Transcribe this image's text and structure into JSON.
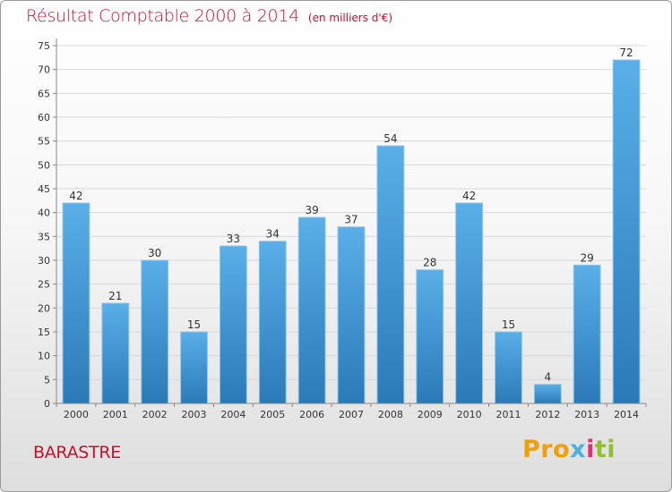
{
  "title": "Résultat Comptable 2000 à 2014",
  "unit_label": "(en milliers d'€)",
  "commune": "BARASTRE",
  "logo": {
    "p1": "Pro",
    "p2": "x",
    "p3": "i",
    "p4": "ti"
  },
  "colors": {
    "bar_top": "#5aafe8",
    "bar_bottom": "#2a7ab8",
    "title": "#c8102e"
  },
  "chart_data": {
    "type": "bar",
    "title": "Résultat Comptable 2000 à 2014",
    "xlabel": "",
    "ylabel": "",
    "ylim": [
      0,
      75
    ],
    "yticks": [
      0,
      5,
      10,
      15,
      20,
      25,
      30,
      35,
      40,
      45,
      50,
      55,
      60,
      65,
      70,
      75
    ],
    "grid": true,
    "categories": [
      "2000",
      "2001",
      "2002",
      "2003",
      "2004",
      "2005",
      "2006",
      "2007",
      "2008",
      "2009",
      "2010",
      "2011",
      "2012",
      "2013",
      "2014"
    ],
    "values": [
      42,
      21,
      30,
      15,
      33,
      34,
      39,
      37,
      54,
      28,
      42,
      15,
      4,
      29,
      72
    ]
  }
}
